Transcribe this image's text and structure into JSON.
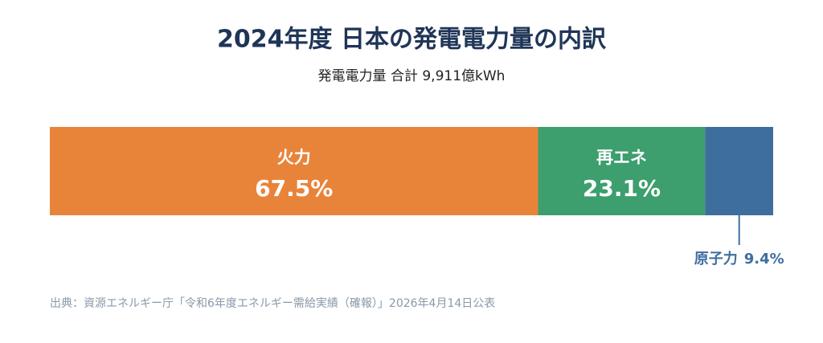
{
  "chart_data": {
    "type": "stacked-bar",
    "title": "2024年度 日本の発電電力量の内訳",
    "subtitle": "発電電力量 合計 9,911億kWh",
    "source": "出典：資源エネルギー庁「令和6年度エネルギー需給実績（確報）」2026年4月14日公表",
    "series": [
      {
        "name": "火力",
        "color": "#e8843a",
        "values": [
          67.5
        ],
        "value_labels": [
          "67.5%"
        ]
      },
      {
        "name": "再エネ",
        "color": "#3d9e6e",
        "values": [
          23.1
        ],
        "value_labels": [
          "23.1%"
        ]
      },
      {
        "name": "原子力",
        "color": "#3d6e9e",
        "values": [
          9.4
        ],
        "value_labels": [
          "9.4%"
        ]
      }
    ]
  }
}
